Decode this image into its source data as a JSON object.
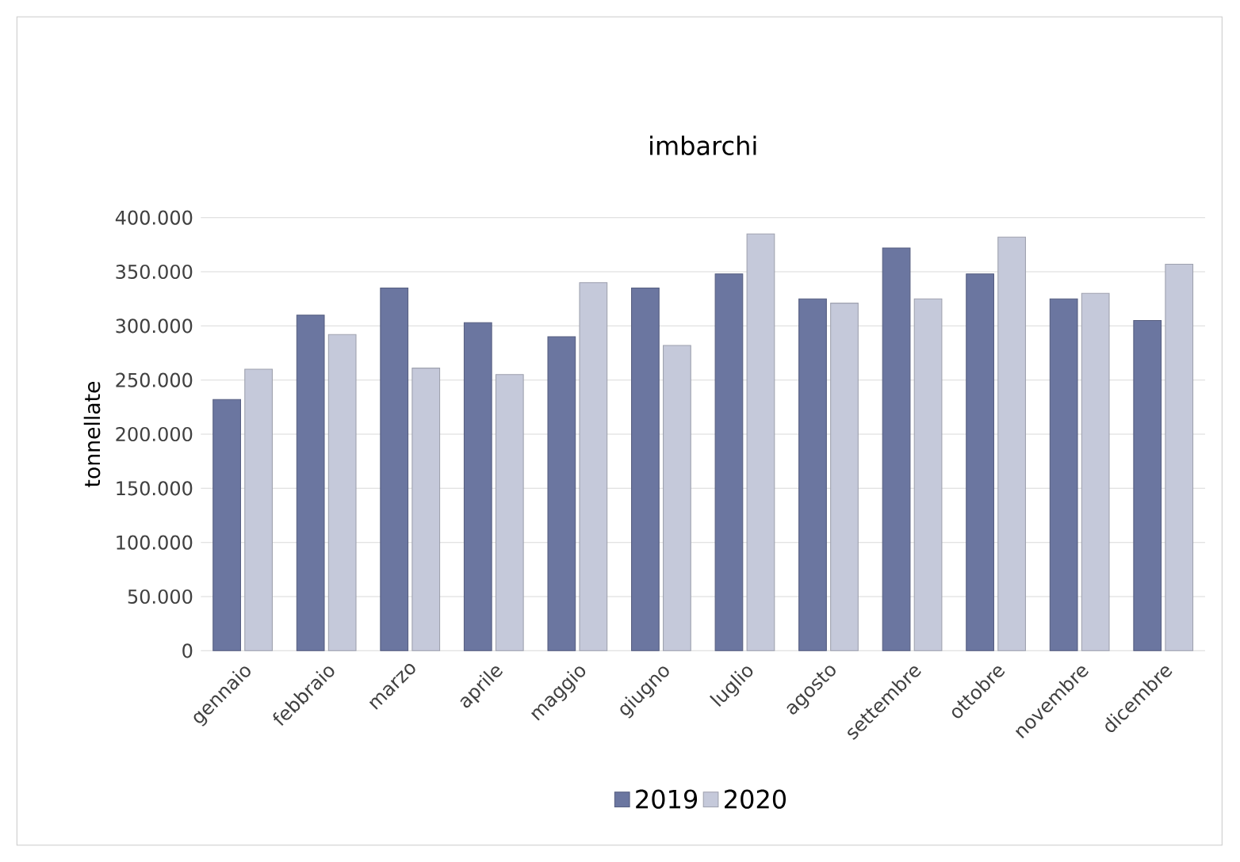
{
  "chart_data": {
    "type": "bar",
    "title": "imbarchi",
    "ylabel": "tonnellate",
    "categories": [
      "gennaio",
      "febbraio",
      "marzo",
      "aprile",
      "maggio",
      "giugno",
      "luglio",
      "agosto",
      "settembre",
      "ottobre",
      "novembre",
      "dicembre"
    ],
    "series": [
      {
        "name": "2019",
        "color": "#6b76a0",
        "values": [
          232000,
          310000,
          335000,
          303000,
          290000,
          335000,
          348000,
          325000,
          372000,
          348000,
          325000,
          305000
        ]
      },
      {
        "name": "2020",
        "color": "#c5c9da",
        "values": [
          260000,
          292000,
          261000,
          255000,
          340000,
          282000,
          385000,
          321000,
          325000,
          382000,
          330000,
          357000
        ]
      }
    ],
    "ylim": [
      0,
      400000
    ],
    "yticks": [
      {
        "value": 0,
        "label": "0"
      },
      {
        "value": 50000,
        "label": "50.000"
      },
      {
        "value": 100000,
        "label": "100.000"
      },
      {
        "value": 150000,
        "label": "150.000"
      },
      {
        "value": 200000,
        "label": "200.000"
      },
      {
        "value": 250000,
        "label": "250.000"
      },
      {
        "value": 300000,
        "label": "300.000"
      },
      {
        "value": 350000,
        "label": "350.000"
      },
      {
        "value": 400000,
        "label": "400.000"
      }
    ],
    "grid": "y",
    "legend": "bottom"
  }
}
